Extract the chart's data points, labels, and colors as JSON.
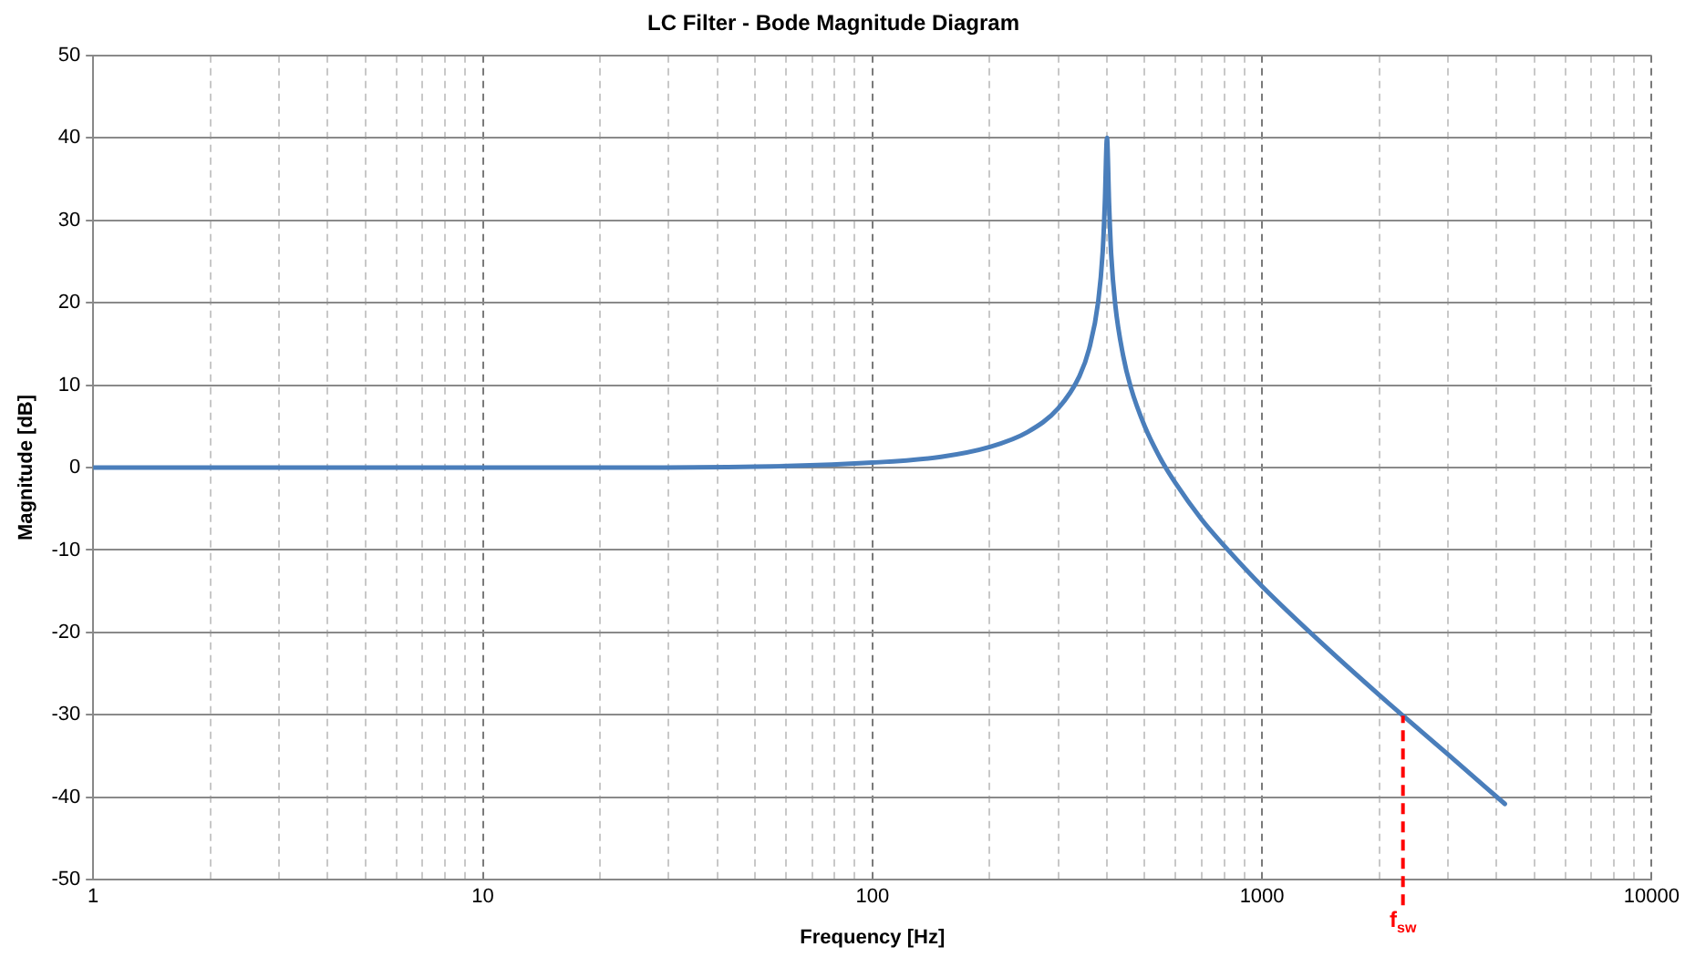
{
  "chart_data": {
    "type": "line",
    "title": "LC Filter - Bode Magnitude Diagram",
    "xlabel": "Frequency [Hz]",
    "ylabel": "Magnitude [dB]",
    "log": "x",
    "x": [
      1,
      1.5,
      2,
      3,
      5,
      10,
      20,
      50,
      100,
      150,
      200,
      250,
      300,
      340,
      360,
      380,
      390,
      395,
      400,
      405,
      410,
      420,
      440,
      460,
      500,
      550,
      600,
      700,
      800,
      1000,
      1500,
      2000,
      2300,
      3000,
      4200
    ],
    "series": [
      {
        "color": "#4a7ebb",
        "values": [
          0,
          0,
          0,
          0,
          0,
          0,
          0,
          0.1,
          0.6,
          1.3,
          2.5,
          4.3,
          7.2,
          11.1,
          14.4,
          20.2,
          26.2,
          32.1,
          40,
          32,
          25.9,
          19.8,
          13.6,
          9.8,
          5,
          1,
          -1.9,
          -6.3,
          -9.5,
          -14.4,
          -22.3,
          -27.6,
          -30.1,
          -34.8,
          -40.8
        ]
      }
    ],
    "xlim": [
      1,
      10000
    ],
    "ylim": [
      -50,
      50
    ],
    "xticks": [
      1,
      {
        "value": 2,
        "label": null
      },
      {
        "value": 3,
        "label": null
      },
      {
        "value": 4,
        "label": null
      },
      {
        "value": 5,
        "label": null
      },
      {
        "value": 6,
        "label": null
      },
      {
        "value": 7,
        "label": null
      },
      {
        "value": 8,
        "label": null
      },
      {
        "value": 9,
        "label": null
      },
      10,
      {
        "value": 20,
        "label": null
      },
      {
        "value": 30,
        "label": null
      },
      {
        "value": 40,
        "label": null
      },
      {
        "value": 50,
        "label": null
      },
      {
        "value": 60,
        "label": null
      },
      {
        "value": 70,
        "label": null
      },
      {
        "value": 80,
        "label": null
      },
      {
        "value": 90,
        "label": null
      },
      100,
      {
        "value": 200,
        "label": null
      },
      {
        "value": 300,
        "label": null
      },
      {
        "value": 400,
        "label": null
      },
      {
        "value": 500,
        "label": null
      },
      {
        "value": 600,
        "label": null
      },
      {
        "value": 700,
        "label": null
      },
      {
        "value": 800,
        "label": null
      },
      {
        "value": 900,
        "label": null
      },
      1000,
      {
        "value": 2000,
        "label": null
      },
      {
        "value": 3000,
        "label": null
      },
      {
        "value": 4000,
        "label": null
      },
      {
        "value": 5000,
        "label": null
      },
      {
        "value": 6000,
        "label": null
      },
      {
        "value": 7000,
        "label": null
      },
      {
        "value": 8000,
        "label": null
      },
      {
        "value": 9000,
        "label": null
      },
      10000
    ],
    "yticks": [
      -50,
      -40,
      -30,
      -20,
      -10,
      0,
      10,
      20,
      30,
      40,
      50
    ],
    "ref_lines": [
      {
        "axis": "x",
        "value": 2300,
        "label": "f$_{sw}$",
        "color": "#ff0000",
        "line_style": "dashed"
      }
    ],
    "grid": true,
    "legend": false,
    "marker": "none",
    "line_style": "solid"
  }
}
